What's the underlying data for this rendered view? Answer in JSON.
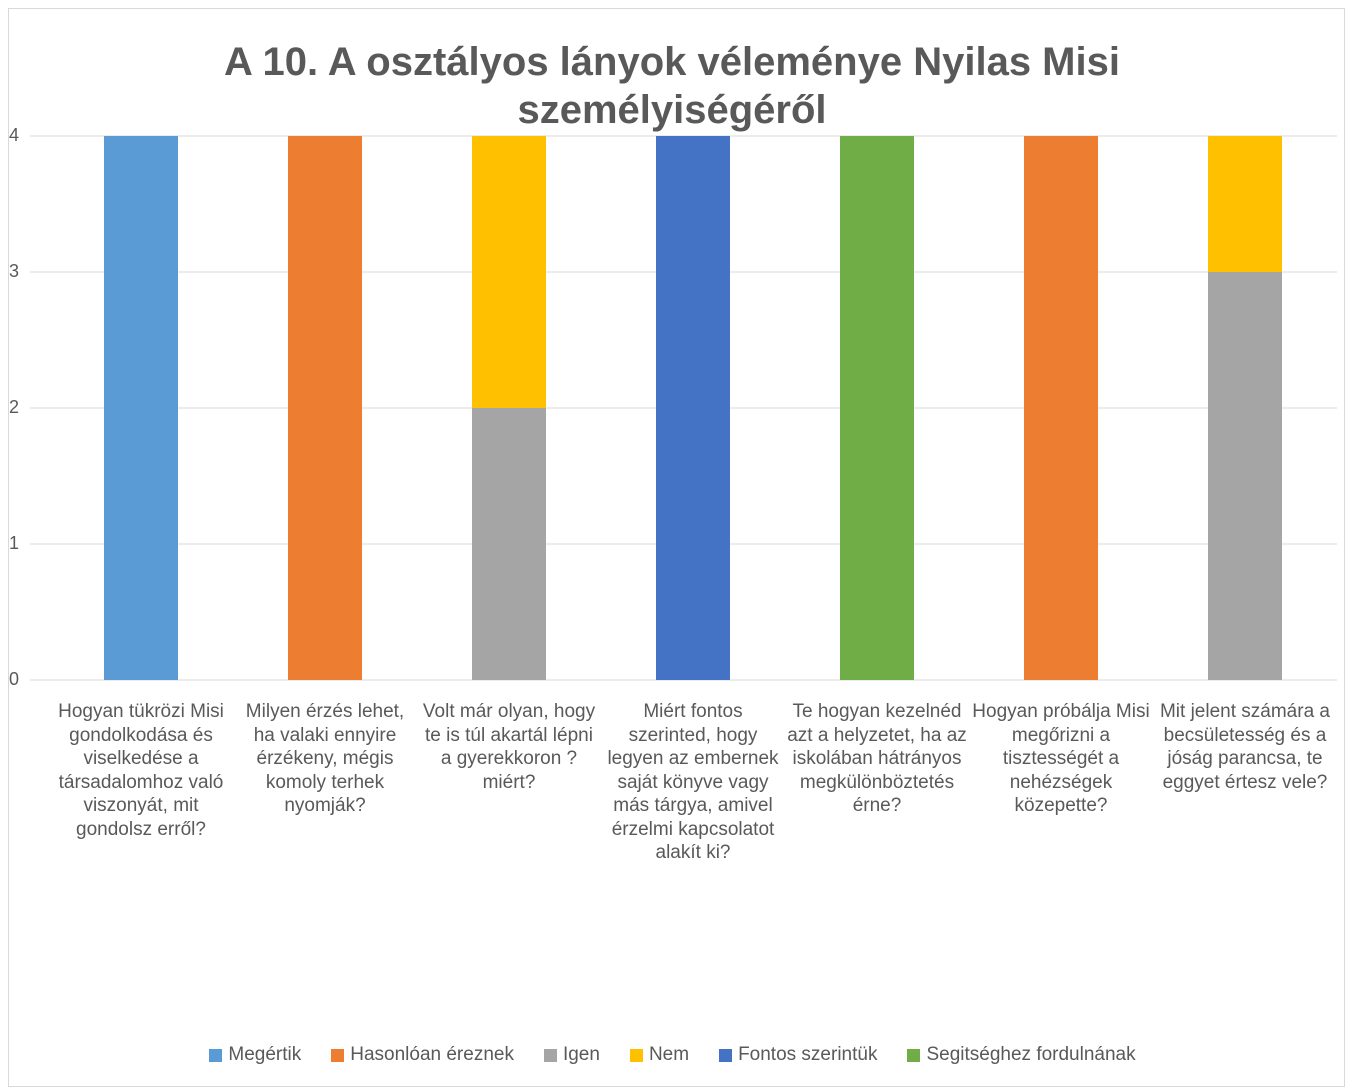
{
  "chart_data": {
    "type": "stacked_bar",
    "title": "A 10. A osztályos lányok véleménye Nyilas Misi személyiségéről",
    "categories": [
      "Hogyan tükrözi Misi gondolkodása és viselkedése a társadalomhoz való viszonyát, mit gondolsz erről?",
      "Milyen érzés lehet, ha valaki ennyire érzékeny, mégis komoly terhek nyomják?",
      "Volt már olyan, hogy te is túl akartál lépni a gyerekkoron ? miért?",
      "Miért fontos szerinted, hogy legyen az embernek saját könyve vagy más tárgya, amivel érzelmi kapcsolatot alakít ki?",
      "Te hogyan kezelnéd azt a helyzetet, ha az iskolában hátrányos megkülönböztetés érne?",
      "Hogyan próbálja Misi megőrizni a tisztességét a nehézségek közepette?",
      "Mit jelent számára a becsületesség és a jóság parancsa, te eggyet értesz vele?"
    ],
    "series": [
      {
        "name": "Megértik",
        "color": "#5b9bd5",
        "values": [
          4,
          0,
          0,
          0,
          0,
          0,
          0
        ]
      },
      {
        "name": "Hasonlóan éreznek",
        "color": "#ed7d31",
        "values": [
          0,
          4,
          0,
          0,
          0,
          4,
          0
        ]
      },
      {
        "name": "Igen",
        "color": "#a5a5a5",
        "values": [
          0,
          0,
          2,
          0,
          0,
          0,
          3
        ]
      },
      {
        "name": "Nem",
        "color": "#ffc000",
        "values": [
          0,
          0,
          2,
          0,
          0,
          0,
          1
        ]
      },
      {
        "name": "Fontos szerintük",
        "color": "#4472c4",
        "values": [
          0,
          0,
          0,
          4,
          0,
          0,
          0
        ]
      },
      {
        "name": "Segitséghez fordulnának",
        "color": "#70ad47",
        "values": [
          0,
          0,
          0,
          0,
          4,
          0,
          0
        ]
      }
    ],
    "ylim": [
      0,
      4
    ],
    "yticks": [
      0,
      1,
      2,
      3,
      4
    ],
    "grid": true,
    "legend": "bottom"
  }
}
